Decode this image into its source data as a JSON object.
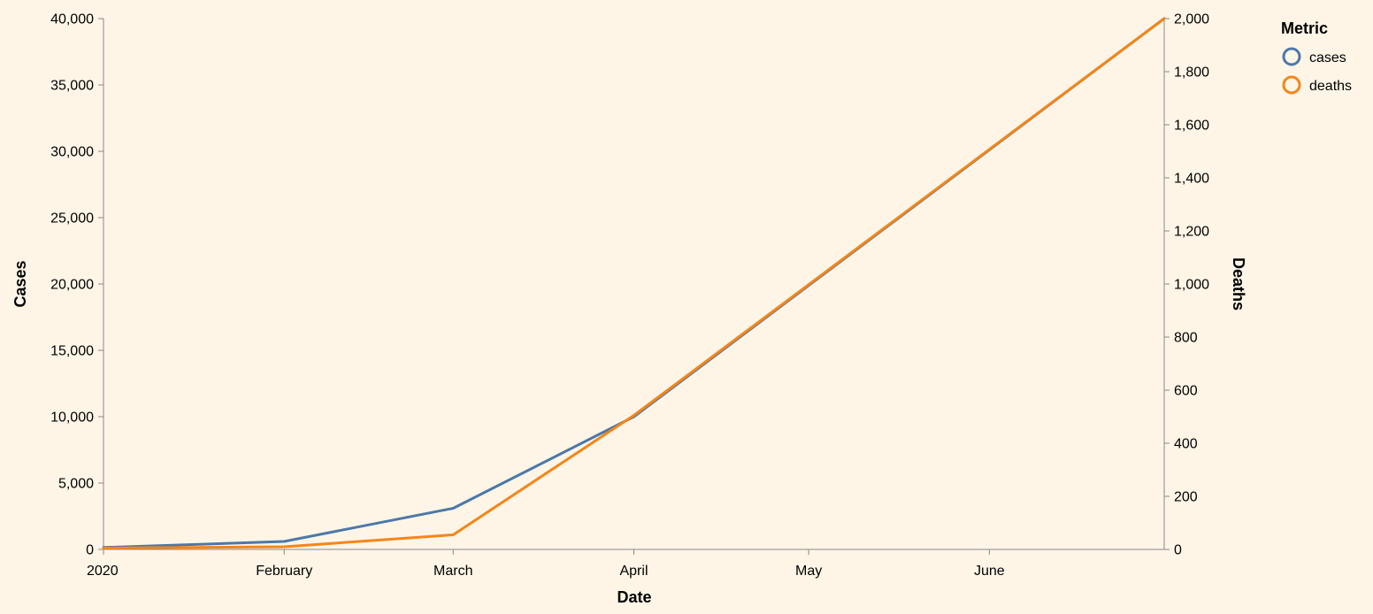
{
  "chart_data": {
    "type": "line",
    "title": "",
    "xlabel": "Date",
    "ylabel_left": "Cases",
    "ylabel_right": "Deaths",
    "x_ticks": [
      "2020",
      "February",
      "March",
      "April",
      "May",
      "June"
    ],
    "x": [
      "2020-01-01",
      "2020-02-01",
      "2020-03-01",
      "2020-04-01",
      "2020-07-01"
    ],
    "xlim": [
      "2020-01-01",
      "2020-07-01"
    ],
    "y_left_ticks": [
      "0",
      "5,000",
      "10,000",
      "15,000",
      "20,000",
      "25,000",
      "30,000",
      "35,000",
      "40,000"
    ],
    "y_right_ticks": [
      "0",
      "200",
      "400",
      "600",
      "800",
      "1,000",
      "1,200",
      "1,400",
      "1,600",
      "1,800",
      "2,000"
    ],
    "ylim_left": [
      0,
      40000
    ],
    "ylim_right": [
      0,
      2000
    ],
    "series": [
      {
        "name": "cases",
        "axis": "left",
        "color": "#4c78a8",
        "values": [
          150,
          600,
          3100,
          10000,
          40000
        ]
      },
      {
        "name": "deaths",
        "axis": "right",
        "color": "#f58518",
        "values": [
          5,
          10,
          55,
          505,
          2000
        ]
      }
    ],
    "legend": {
      "title": "Metric",
      "position": "top-right"
    },
    "grid": false
  }
}
